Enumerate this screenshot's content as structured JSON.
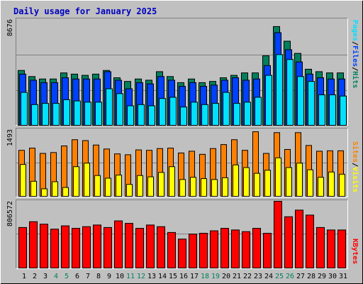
{
  "title": "Daily usage for January 2025",
  "colors": {
    "background": "#c0c0c0",
    "title": "#0000c0",
    "hits": "#00805c",
    "files": "#0040ff",
    "pages": "#00e0ff",
    "visits": "#ffff00",
    "sites": "#ff8000",
    "kbytes": "#ff0000",
    "weekend_label": "#00805c",
    "weekday_label": "#000000"
  },
  "chart_data": [
    {
      "type": "bar",
      "name": "hits-files-pages",
      "ymax_label": "8676",
      "legend": [
        {
          "text": "Hits",
          "color": "#00805c"
        },
        {
          "text": "Files",
          "color": "#0040ff"
        },
        {
          "text": "Pages",
          "color": "#00e0ff"
        }
      ],
      "ylim": [
        0,
        8676
      ],
      "categories": [
        "1",
        "2",
        "3",
        "4",
        "5",
        "6",
        "7",
        "8",
        "9",
        "10",
        "11",
        "12",
        "13",
        "14",
        "15",
        "16",
        "17",
        "18",
        "19",
        "20",
        "21",
        "22",
        "23",
        "24",
        "25",
        "26",
        "27",
        "28",
        "29",
        "30",
        "31"
      ],
      "weekend_days": [
        "4",
        "5",
        "11",
        "12",
        "18",
        "19",
        "25",
        "26"
      ],
      "series": [
        {
          "name": "Hits",
          "values": [
            4500,
            4000,
            3800,
            3800,
            4300,
            4200,
            4100,
            4200,
            4500,
            3900,
            3600,
            3800,
            3700,
            4400,
            4000,
            3500,
            3800,
            3500,
            3600,
            3900,
            4100,
            4300,
            4300,
            5700,
            8100,
            6900,
            5900,
            4600,
            4400,
            4300,
            4300
          ]
        },
        {
          "name": "Files",
          "values": [
            4200,
            3700,
            3500,
            3500,
            3900,
            3800,
            3800,
            3800,
            4400,
            3700,
            3000,
            3500,
            3400,
            4000,
            3700,
            3200,
            3500,
            3200,
            3300,
            3700,
            3900,
            3700,
            3800,
            4900,
            7600,
            6200,
            5200,
            4200,
            3900,
            3800,
            3800
          ]
        },
        {
          "name": "Pages",
          "values": [
            2700,
            1700,
            1800,
            1800,
            2100,
            2000,
            1900,
            1900,
            3000,
            2600,
            1600,
            1700,
            1600,
            2200,
            2300,
            1500,
            1900,
            1700,
            1800,
            2700,
            1800,
            1900,
            2300,
            4100,
            5800,
            5400,
            4000,
            3600,
            2500,
            2500,
            2400
          ]
        }
      ]
    },
    {
      "type": "bar",
      "name": "visits-sites",
      "ymax_label": "1493",
      "legend": [
        {
          "text": "Visits",
          "color": "#ffff00"
        },
        {
          "text": "Sites",
          "color": "#ff8000"
        }
      ],
      "ylim": [
        0,
        1493
      ],
      "categories": [
        "1",
        "2",
        "3",
        "4",
        "5",
        "6",
        "7",
        "8",
        "9",
        "10",
        "11",
        "12",
        "13",
        "14",
        "15",
        "16",
        "17",
        "18",
        "19",
        "20",
        "21",
        "22",
        "23",
        "24",
        "25",
        "26",
        "27",
        "28",
        "29",
        "30",
        "31"
      ],
      "series": [
        {
          "name": "Visits",
          "values": [
            720,
            340,
            170,
            330,
            200,
            670,
            750,
            470,
            410,
            480,
            270,
            470,
            440,
            540,
            670,
            380,
            430,
            400,
            380,
            420,
            710,
            650,
            520,
            590,
            870,
            650,
            750,
            600,
            430,
            550,
            500
          ]
        },
        {
          "name": "Sites",
          "values": [
            1040,
            1090,
            970,
            990,
            1140,
            1280,
            1260,
            1160,
            1070,
            960,
            940,
            1050,
            1040,
            1080,
            1090,
            980,
            1020,
            950,
            1080,
            1170,
            1280,
            1040,
            1460,
            970,
            1440,
            1060,
            1440,
            1150,
            1020,
            1030,
            1030
          ]
        }
      ]
    },
    {
      "type": "bar",
      "name": "kbytes",
      "ymax_label": "806572",
      "legend": [
        {
          "text": "KBytes",
          "color": "#ff0000"
        }
      ],
      "ylim": [
        0,
        806572
      ],
      "categories": [
        "1",
        "2",
        "3",
        "4",
        "5",
        "6",
        "7",
        "8",
        "9",
        "10",
        "11",
        "12",
        "13",
        "14",
        "15",
        "16",
        "17",
        "18",
        "19",
        "20",
        "21",
        "22",
        "23",
        "24",
        "25",
        "26",
        "27",
        "28",
        "29",
        "30",
        "31"
      ],
      "series": [
        {
          "name": "KBytes",
          "values": [
            490000,
            560000,
            530000,
            470000,
            510000,
            480000,
            500000,
            520000,
            490000,
            570000,
            540000,
            480000,
            520000,
            500000,
            430000,
            350000,
            410000,
            420000,
            450000,
            480000,
            460000,
            440000,
            480000,
            420000,
            820000,
            620000,
            700000,
            640000,
            490000,
            460000,
            460000
          ]
        }
      ]
    }
  ]
}
